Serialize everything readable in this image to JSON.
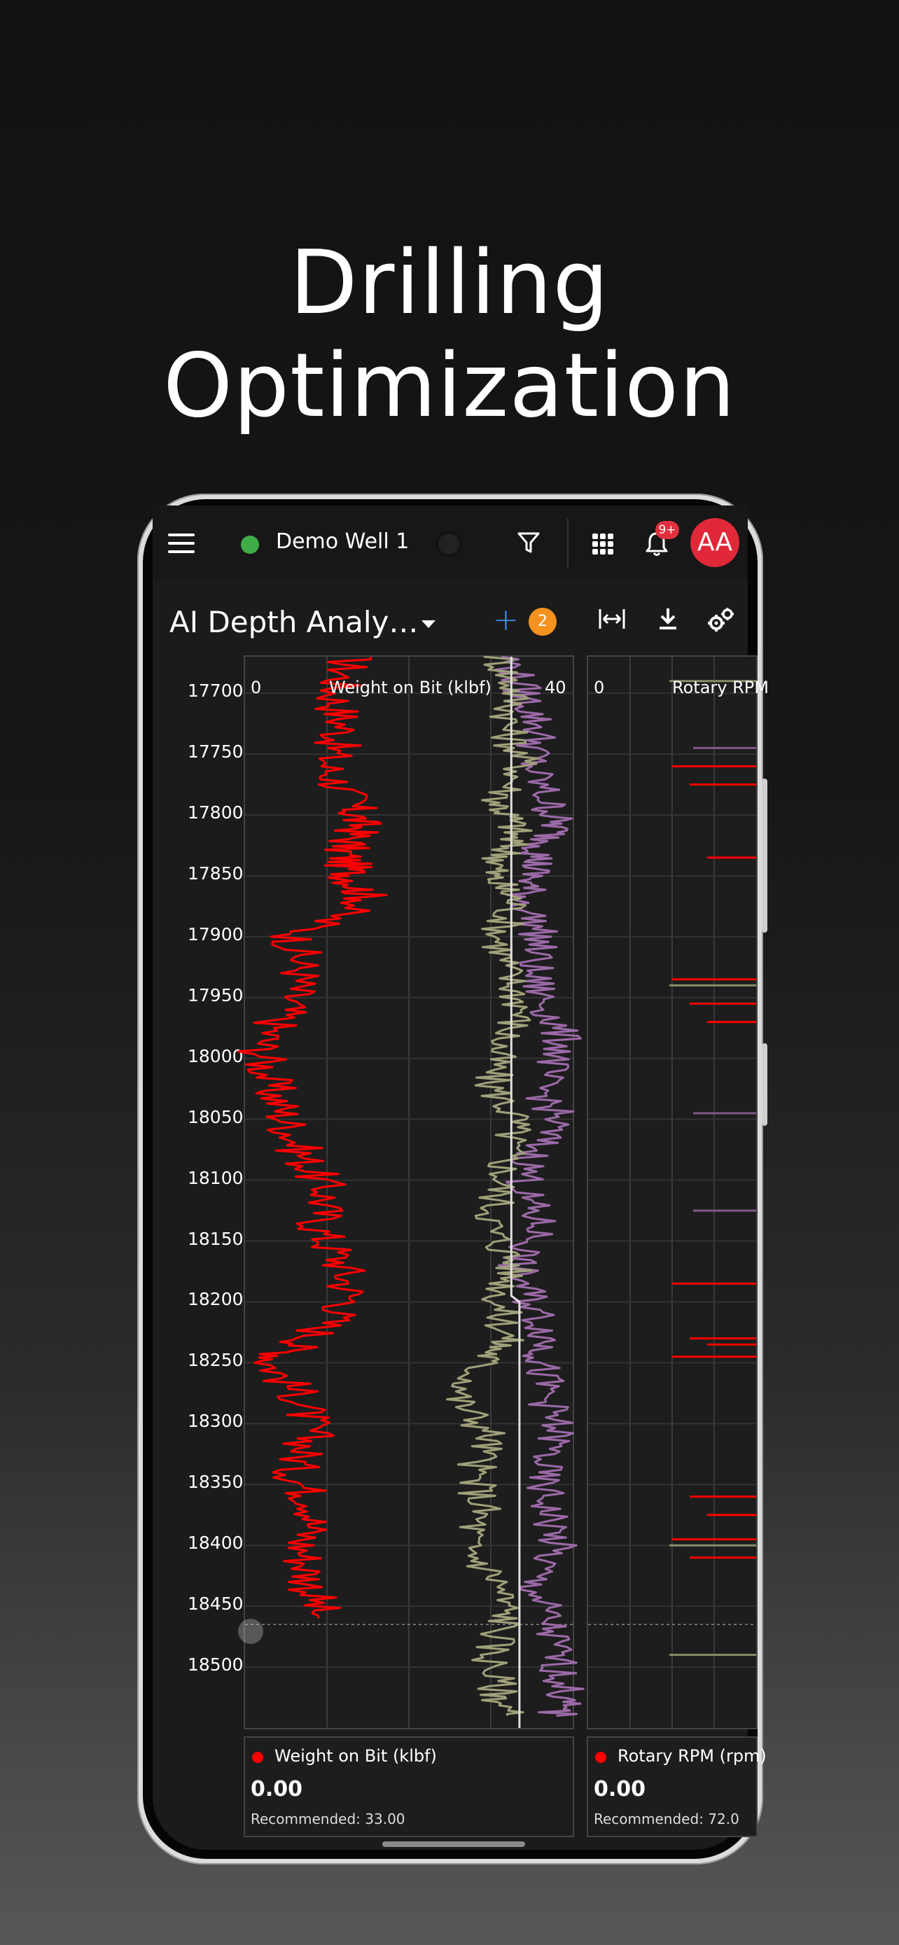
{
  "headline": "Drilling Optimization",
  "topbar": {
    "well_name": "Demo Well 1",
    "notification_count": "9+",
    "avatar_initials": "AA",
    "status_color": "#3fae49"
  },
  "toolbar": {
    "page_title": "AI Depth Analy…",
    "add_count": "2",
    "icons": [
      "fit-width-icon",
      "download-icon",
      "settings-icon"
    ]
  },
  "depth_axis": {
    "labels": [
      "17700",
      "17750",
      "17800",
      "17850",
      "17900",
      "17950",
      "18000",
      "18050",
      "18100",
      "18150",
      "18200",
      "18250",
      "18300",
      "18350",
      "18400",
      "18450",
      "18500"
    ]
  },
  "tracks": [
    {
      "header_min": "0",
      "header_title": "Weight on Bit (klbf)",
      "header_max": "40",
      "legend_name": "Weight on Bit (klbf)",
      "legend_value": "0.00",
      "legend_recommended": "Recommended: 33.00",
      "color": "#ff0000"
    },
    {
      "header_min": "0",
      "header_title": "Rotary RPM",
      "legend_name": "Rotary RPM (rpm)",
      "legend_value": "0.00",
      "legend_recommended": "Recommended: 72.0",
      "color": "#ff0000"
    }
  ],
  "chart_data": {
    "type": "line",
    "y_axis": "Depth",
    "ylim": [
      17670,
      18550
    ],
    "series": [
      {
        "name": "Weight on Bit (klbf)",
        "color": "#ff0000",
        "y": [
          17670,
          17700,
          17730,
          17760,
          17790,
          17810,
          17830,
          17850,
          17870,
          17900,
          17930,
          17960,
          17990,
          18020,
          18050,
          18080,
          18110,
          18140,
          18170,
          18200,
          18230,
          18250,
          18280,
          18310,
          18340,
          18370,
          18400,
          18430,
          18460
        ],
        "x": [
          13,
          11,
          12,
          10,
          13,
          14,
          12,
          13,
          15,
          6,
          7,
          5,
          2,
          3,
          5,
          7,
          10,
          9,
          12,
          13,
          8,
          3,
          7,
          8,
          6,
          9,
          7,
          8,
          9
        ]
      },
      {
        "color": "#a0a07a",
        "y": [
          17670,
          17700,
          17730,
          17760,
          17790,
          17810,
          17830,
          17850,
          17870,
          17900,
          17930,
          17960,
          17990,
          18020,
          18050,
          18080,
          18110,
          18140,
          18170,
          18200,
          18230,
          18250,
          18280,
          18310,
          18340,
          18370,
          18400,
          18430,
          18460,
          18490,
          18520,
          18540
        ],
        "x": [
          31,
          33,
          32,
          34,
          31,
          33,
          32,
          30,
          33,
          31,
          32,
          34,
          31,
          30,
          33,
          32,
          31,
          30,
          33,
          31,
          32,
          29,
          26,
          30,
          28,
          29,
          27,
          31,
          32,
          30,
          31,
          32
        ]
      },
      {
        "color": "#9c6aa8",
        "y": [
          17670,
          17700,
          17730,
          17760,
          17790,
          17810,
          17830,
          17850,
          17870,
          17900,
          17930,
          17960,
          17990,
          18020,
          18050,
          18080,
          18110,
          18140,
          18170,
          18200,
          18230,
          18250,
          18280,
          18310,
          18340,
          18370,
          18400,
          18430,
          18460,
          18490,
          18520,
          18540
        ],
        "x": [
          32,
          34,
          36,
          35,
          37,
          38,
          36,
          35,
          34,
          36,
          35,
          37,
          39,
          36,
          38,
          35,
          34,
          36,
          33,
          35,
          37,
          36,
          37,
          38,
          36,
          37,
          38,
          35,
          37,
          38,
          39,
          38
        ]
      },
      {
        "color": "#e0e0e0",
        "y": [
          17670,
          18195,
          18200,
          18550
        ],
        "x": [
          32.5,
          32.5,
          33.5,
          33.5
        ]
      }
    ],
    "xlim": [
      0,
      40
    ]
  }
}
